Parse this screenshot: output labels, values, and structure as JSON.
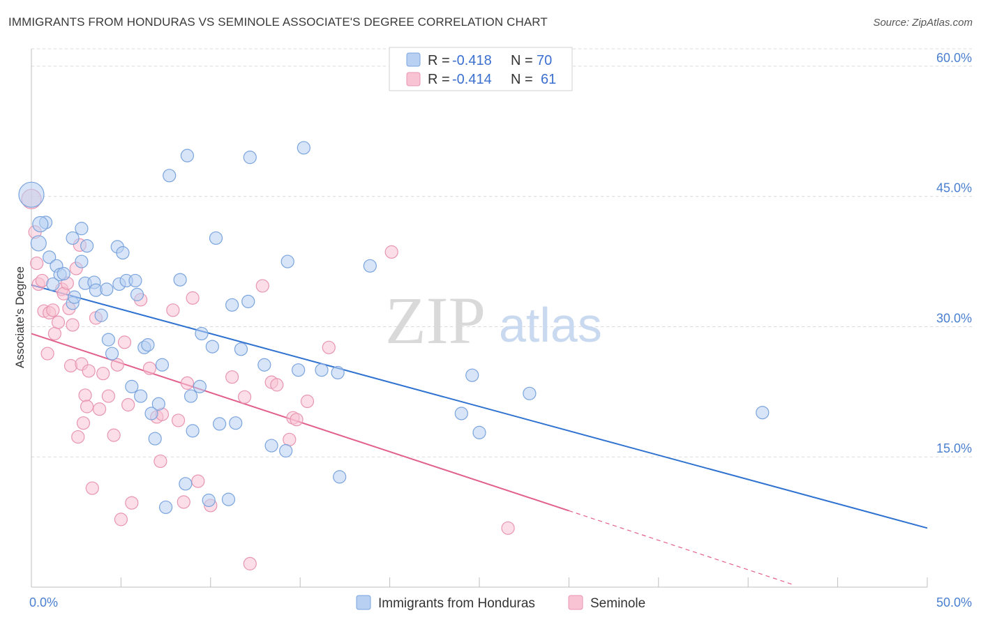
{
  "title": "IMMIGRANTS FROM HONDURAS VS SEMINOLE ASSOCIATE'S DEGREE CORRELATION CHART",
  "source": "Source: ZipAtlas.com",
  "watermark": {
    "zip": "ZIP",
    "atlas": "atlas"
  },
  "colors": {
    "blue_fill": "#b8d0f2",
    "blue_stroke": "#7aa4dd",
    "blue_line": "#2f72d0",
    "pink_fill": "#f8c3d3",
    "pink_stroke": "#e895b2",
    "pink_line": "#e2608c",
    "grid": "#d9d9d9",
    "tick_text": "#4a7fd0"
  },
  "legend": {
    "rows": [
      {
        "r_label": "R =",
        "r_value": "-0.418",
        "n_label": "N =",
        "n_value": "70"
      },
      {
        "r_label": "R =",
        "r_value": "-0.414",
        "n_label": "N =",
        "n_value": "61"
      }
    ]
  },
  "chart_data": {
    "type": "scatter",
    "title": "IMMIGRANTS FROM HONDURAS VS SEMINOLE ASSOCIATE'S DEGREE CORRELATION CHART",
    "xlabel": "",
    "ylabel": "Associate's Degree",
    "xlim": [
      0,
      50
    ],
    "ylim": [
      0,
      62
    ],
    "x_tick_labels": [
      "0.0%",
      "50.0%"
    ],
    "y_ticks": [
      15,
      30,
      45,
      60
    ],
    "y_tick_labels": [
      "15.0%",
      "30.0%",
      "45.0%",
      "60.0%"
    ],
    "legend_position": "top-center",
    "series": [
      {
        "name": "Immigrants from Honduras",
        "R": -0.418,
        "N": 70,
        "trend": {
          "x": [
            0,
            50
          ],
          "y": [
            34.8,
            6.8
          ]
        },
        "points": [
          [
            0.0,
            45.2
          ],
          [
            0.4,
            39.6
          ],
          [
            0.8,
            42.0
          ],
          [
            1.0,
            38.0
          ],
          [
            1.2,
            34.9
          ],
          [
            1.4,
            37.0
          ],
          [
            1.6,
            36.0
          ],
          [
            1.8,
            36.1
          ],
          [
            2.3,
            40.2
          ],
          [
            2.3,
            32.7
          ],
          [
            2.4,
            33.4
          ],
          [
            2.8,
            37.5
          ],
          [
            2.8,
            41.3
          ],
          [
            3.1,
            39.3
          ],
          [
            3.0,
            35.0
          ],
          [
            3.5,
            35.1
          ],
          [
            3.6,
            34.2
          ],
          [
            3.9,
            31.3
          ],
          [
            4.2,
            34.3
          ],
          [
            4.3,
            28.5
          ],
          [
            4.5,
            26.9
          ],
          [
            4.8,
            39.2
          ],
          [
            4.9,
            34.9
          ],
          [
            5.1,
            38.5
          ],
          [
            5.3,
            35.3
          ],
          [
            5.6,
            23.1
          ],
          [
            5.8,
            35.3
          ],
          [
            5.9,
            33.7
          ],
          [
            6.1,
            22.0
          ],
          [
            6.3,
            27.6
          ],
          [
            6.5,
            27.9
          ],
          [
            6.7,
            20.0
          ],
          [
            6.9,
            17.1
          ],
          [
            7.1,
            21.1
          ],
          [
            7.3,
            25.6
          ],
          [
            7.5,
            9.2
          ],
          [
            7.7,
            47.4
          ],
          [
            8.3,
            35.4
          ],
          [
            8.6,
            11.9
          ],
          [
            8.7,
            49.7
          ],
          [
            8.9,
            22.0
          ],
          [
            9.0,
            18.0
          ],
          [
            9.4,
            23.1
          ],
          [
            9.5,
            29.2
          ],
          [
            9.9,
            10.0
          ],
          [
            10.1,
            27.7
          ],
          [
            10.3,
            40.2
          ],
          [
            10.5,
            18.8
          ],
          [
            11.0,
            10.1
          ],
          [
            11.2,
            32.5
          ],
          [
            11.4,
            18.9
          ],
          [
            11.7,
            27.4
          ],
          [
            12.1,
            32.9
          ],
          [
            12.2,
            49.5
          ],
          [
            13.0,
            25.6
          ],
          [
            13.4,
            16.3
          ],
          [
            14.2,
            15.7
          ],
          [
            14.3,
            37.5
          ],
          [
            14.9,
            25.0
          ],
          [
            15.2,
            50.6
          ],
          [
            16.2,
            25.0
          ],
          [
            17.2,
            12.7
          ],
          [
            17.1,
            24.7
          ],
          [
            18.9,
            37.0
          ],
          [
            24.0,
            20.0
          ],
          [
            24.6,
            24.4
          ],
          [
            25.0,
            17.8
          ],
          [
            27.8,
            22.3
          ],
          [
            40.8,
            20.1
          ],
          [
            0.5,
            41.8
          ]
        ]
      },
      {
        "name": "Seminole",
        "R": -0.414,
        "N": 61,
        "trend": {
          "x": [
            0,
            30
          ],
          "y": [
            29.2,
            8.8
          ]
        },
        "trend_dashed": {
          "x": [
            30,
            42.5
          ],
          "y": [
            8.8,
            0.3
          ]
        },
        "points": [
          [
            0.0,
            44.7
          ],
          [
            0.2,
            40.9
          ],
          [
            0.3,
            37.3
          ],
          [
            0.4,
            34.9
          ],
          [
            0.6,
            35.3
          ],
          [
            0.7,
            31.8
          ],
          [
            0.9,
            26.9
          ],
          [
            1.0,
            31.6
          ],
          [
            1.2,
            31.9
          ],
          [
            1.3,
            29.2
          ],
          [
            1.5,
            30.5
          ],
          [
            1.7,
            34.3
          ],
          [
            1.8,
            33.8
          ],
          [
            2.0,
            35.0
          ],
          [
            2.1,
            32.1
          ],
          [
            2.2,
            25.5
          ],
          [
            2.3,
            30.2
          ],
          [
            2.5,
            36.7
          ],
          [
            2.6,
            17.3
          ],
          [
            2.7,
            39.4
          ],
          [
            2.8,
            25.7
          ],
          [
            2.9,
            18.9
          ],
          [
            3.0,
            22.1
          ],
          [
            3.1,
            20.8
          ],
          [
            3.2,
            24.9
          ],
          [
            3.4,
            11.4
          ],
          [
            3.6,
            31.0
          ],
          [
            3.8,
            20.5
          ],
          [
            4.0,
            24.6
          ],
          [
            4.3,
            22.0
          ],
          [
            4.6,
            17.5
          ],
          [
            4.8,
            25.6
          ],
          [
            5.0,
            7.8
          ],
          [
            5.2,
            28.2
          ],
          [
            5.4,
            21.0
          ],
          [
            5.6,
            9.7
          ],
          [
            6.1,
            33.1
          ],
          [
            6.6,
            25.2
          ],
          [
            7.0,
            19.6
          ],
          [
            7.2,
            14.5
          ],
          [
            7.3,
            19.9
          ],
          [
            7.9,
            31.9
          ],
          [
            8.2,
            19.2
          ],
          [
            8.5,
            9.8
          ],
          [
            8.7,
            23.5
          ],
          [
            9.0,
            33.3
          ],
          [
            9.3,
            12.2
          ],
          [
            10.0,
            9.4
          ],
          [
            11.2,
            24.2
          ],
          [
            11.9,
            21.9
          ],
          [
            12.2,
            2.7
          ],
          [
            12.9,
            34.7
          ],
          [
            13.4,
            23.6
          ],
          [
            13.7,
            23.3
          ],
          [
            14.4,
            17.0
          ],
          [
            14.6,
            19.5
          ],
          [
            15.4,
            21.4
          ],
          [
            16.6,
            27.6
          ],
          [
            20.1,
            38.6
          ],
          [
            26.6,
            6.8
          ],
          [
            14.8,
            19.3
          ]
        ]
      }
    ]
  }
}
